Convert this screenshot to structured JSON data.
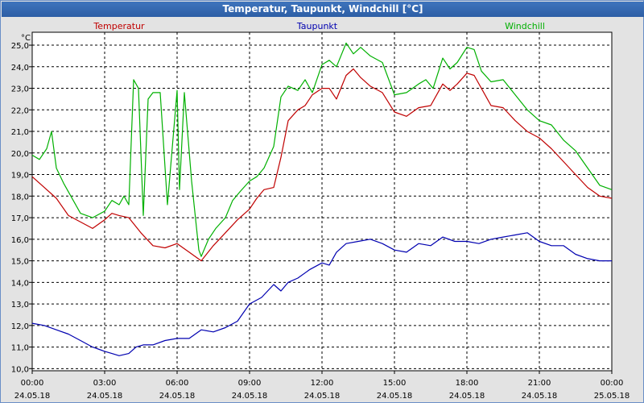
{
  "window": {
    "title": "Temperatur, Taupunkt, Windchill [°C]"
  },
  "colors": {
    "temperatur": "#c00000",
    "taupunkt": "#0000b0",
    "windchill": "#00b000",
    "grid": "#000000",
    "plot_bg": "#ffffff"
  },
  "chart_data": {
    "type": "line",
    "title": "Temperatur, Taupunkt, Windchill [°C]",
    "ylabel": "°C",
    "ylim": [
      9.9,
      25.6
    ],
    "xlim": [
      0,
      24
    ],
    "yticks": [
      "10,0",
      "11,0",
      "12,0",
      "13,0",
      "14,0",
      "15,0",
      "16,0",
      "17,0",
      "18,0",
      "19,0",
      "20,0",
      "21,0",
      "22,0",
      "23,0",
      "24,0",
      "25,0"
    ],
    "xticks": [
      {
        "time": "00:00",
        "date": "24.05.18"
      },
      {
        "time": "03:00",
        "date": "24.05.18"
      },
      {
        "time": "06:00",
        "date": "24.05.18"
      },
      {
        "time": "09:00",
        "date": "24.05.18"
      },
      {
        "time": "12:00",
        "date": "24.05.18"
      },
      {
        "time": "15:00",
        "date": "24.05.18"
      },
      {
        "time": "18:00",
        "date": "24.05.18"
      },
      {
        "time": "21:00",
        "date": "24.05.18"
      },
      {
        "time": "00:00",
        "date": "25.05.18"
      }
    ],
    "series": [
      {
        "name": "Temperatur",
        "color": "#c00000",
        "x": [
          0,
          0.5,
          1,
          1.5,
          2,
          2.5,
          3,
          3.3,
          3.6,
          4,
          4.5,
          5,
          5.5,
          6,
          6.5,
          7,
          7.5,
          8,
          8.5,
          9,
          9.3,
          9.6,
          10,
          10.3,
          10.6,
          11,
          11.3,
          11.6,
          12,
          12.3,
          12.6,
          13,
          13.3,
          13.6,
          14,
          14.5,
          15,
          15.5,
          16,
          16.5,
          17,
          17.3,
          17.6,
          18,
          18.3,
          18.6,
          19,
          19.5,
          20,
          20.5,
          21,
          21.5,
          22,
          22.5,
          23,
          23.5,
          24
        ],
        "values": [
          18.9,
          18.4,
          17.9,
          17.1,
          16.8,
          16.5,
          16.9,
          17.2,
          17.1,
          17.0,
          16.3,
          15.7,
          15.6,
          15.8,
          15.4,
          15.0,
          15.7,
          16.3,
          16.9,
          17.4,
          17.9,
          18.3,
          18.4,
          19.8,
          21.5,
          22.0,
          22.2,
          22.7,
          23.0,
          23.0,
          22.5,
          23.6,
          23.9,
          23.5,
          23.1,
          22.8,
          21.9,
          21.7,
          22.1,
          22.2,
          23.2,
          22.9,
          23.2,
          23.7,
          23.6,
          23.0,
          22.2,
          22.1,
          21.5,
          21.0,
          20.7,
          20.2,
          19.6,
          19.0,
          18.4,
          18.0,
          17.9
        ]
      },
      {
        "name": "Taupunkt",
        "color": "#0000b0",
        "x": [
          0,
          0.5,
          1,
          1.5,
          2,
          2.5,
          3,
          3.3,
          3.6,
          4,
          4.3,
          4.6,
          5,
          5.5,
          6,
          6.5,
          7,
          7.5,
          8,
          8.5,
          9,
          9.5,
          10,
          10.3,
          10.6,
          11,
          11.5,
          12,
          12.3,
          12.6,
          13,
          13.5,
          14,
          14.5,
          15,
          15.5,
          16,
          16.5,
          17,
          17.5,
          18,
          18.5,
          19,
          19.5,
          20,
          20.5,
          21,
          21.5,
          22,
          22.5,
          23,
          23.5,
          24
        ],
        "values": [
          12.1,
          12.0,
          11.8,
          11.6,
          11.3,
          11.0,
          10.8,
          10.7,
          10.6,
          10.7,
          11.0,
          11.1,
          11.1,
          11.3,
          11.4,
          11.4,
          11.8,
          11.7,
          11.9,
          12.2,
          13.0,
          13.3,
          13.9,
          13.6,
          14.0,
          14.2,
          14.6,
          14.9,
          14.8,
          15.4,
          15.8,
          15.9,
          16.0,
          15.8,
          15.5,
          15.4,
          15.8,
          15.7,
          16.1,
          15.9,
          15.9,
          15.8,
          16.0,
          16.1,
          16.2,
          16.3,
          15.9,
          15.7,
          15.7,
          15.3,
          15.1,
          15.0,
          15.0
        ]
      },
      {
        "name": "Windchill",
        "color": "#00b000",
        "x": [
          0,
          0.3,
          0.6,
          0.8,
          1,
          1.3,
          1.6,
          2,
          2.5,
          3,
          3.3,
          3.6,
          3.8,
          4,
          4.2,
          4.4,
          4.6,
          4.8,
          5,
          5.3,
          5.6,
          6,
          6.1,
          6.3,
          6.6,
          6.9,
          7,
          7.3,
          7.6,
          8,
          8.3,
          8.6,
          9,
          9.3,
          9.6,
          10,
          10.3,
          10.6,
          11,
          11.3,
          11.6,
          12,
          12.3,
          12.6,
          13,
          13.3,
          13.6,
          14,
          14.5,
          15,
          15.5,
          16,
          16.3,
          16.6,
          17,
          17.3,
          17.6,
          18,
          18.3,
          18.6,
          19,
          19.5,
          20,
          20.5,
          21,
          21.5,
          22,
          22.5,
          23,
          23.5,
          24
        ],
        "values": [
          19.9,
          19.7,
          20.2,
          21.0,
          19.3,
          18.6,
          18.0,
          17.2,
          17.0,
          17.3,
          17.8,
          17.6,
          18.0,
          17.6,
          23.4,
          23.0,
          17.1,
          22.5,
          22.8,
          22.8,
          17.6,
          22.9,
          18.3,
          22.8,
          18.7,
          15.5,
          15.2,
          16.0,
          16.5,
          17.0,
          17.8,
          18.2,
          18.7,
          18.9,
          19.3,
          20.3,
          22.6,
          23.1,
          22.9,
          23.4,
          22.8,
          24.1,
          24.3,
          24.0,
          25.1,
          24.6,
          24.9,
          24.5,
          24.2,
          22.7,
          22.8,
          23.2,
          23.4,
          23.0,
          24.4,
          23.9,
          24.2,
          24.9,
          24.8,
          23.8,
          23.3,
          23.4,
          22.7,
          22.0,
          21.5,
          21.3,
          20.6,
          20.1,
          19.3,
          18.5,
          18.3
        ]
      }
    ]
  }
}
